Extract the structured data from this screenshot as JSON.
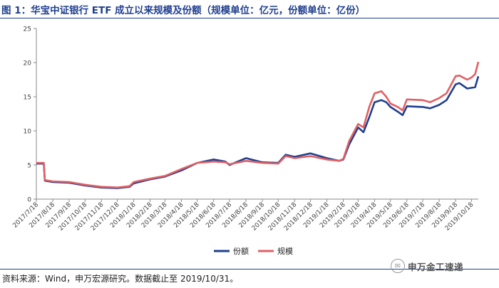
{
  "title": "图 1：华宝中证银行 ETF 成立以来规模及份额（规模单位：亿元，份额单位：亿份）",
  "source": "资料来源：Wind，申万宏源研究。数据截止至 2019/10/31。",
  "watermark": "申万金工速递",
  "colors": {
    "title": "#1f3f8f",
    "shares": "#1f3f8f",
    "scale": "#e06064"
  },
  "chart_data": {
    "type": "line",
    "title": "",
    "xlabel": "",
    "ylabel": "",
    "ylim": [
      0,
      25
    ],
    "yticks": [
      0,
      5,
      10,
      15,
      20,
      25
    ],
    "grid": false,
    "legend_position": "bottom-center",
    "x_tick_labels": [
      "2017/7/18",
      "2017/8/18",
      "2017/9/18",
      "2017/10/18",
      "2017/11/18",
      "2017/12/18",
      "2018/1/18",
      "2018/2/18",
      "2018/3/18",
      "2018/4/18",
      "2018/5/18",
      "2018/6/18",
      "2018/7/18",
      "2018/8/18",
      "2018/9/18",
      "2018/10/18",
      "2018/11/18",
      "2018/12/18",
      "2019/1/18",
      "2019/2/18",
      "2019/3/18",
      "2019/4/18",
      "2019/5/18",
      "2019/6/18",
      "2019/7/18",
      "2019/8/18",
      "2019/9/18",
      "2019/10/18"
    ],
    "series": [
      {
        "name": "份额",
        "color": "#1f3f8f",
        "x": [
          "2017/7/18",
          "2017/8/1",
          "2017/8/3",
          "2017/8/18",
          "2017/9/18",
          "2017/10/18",
          "2017/11/18",
          "2017/12/18",
          "2018/1/10",
          "2018/1/18",
          "2018/2/18",
          "2018/3/18",
          "2018/4/18",
          "2018/5/18",
          "2018/6/18",
          "2018/7/10",
          "2018/7/18",
          "2018/8/18",
          "2018/9/18",
          "2018/10/18",
          "2018/11/1",
          "2018/11/18",
          "2018/12/18",
          "2019/1/18",
          "2019/2/10",
          "2019/2/18",
          "2019/3/1",
          "2019/3/18",
          "2019/3/28",
          "2019/4/8",
          "2019/4/18",
          "2019/5/1",
          "2019/5/10",
          "2019/5/18",
          "2019/6/1",
          "2019/6/10",
          "2019/6/18",
          "2019/7/18",
          "2019/8/1",
          "2019/8/18",
          "2019/9/1",
          "2019/9/18",
          "2019/9/25",
          "2019/10/10",
          "2019/10/18",
          "2019/10/25",
          "2019/10/31"
        ],
        "values": [
          5.2,
          5.2,
          2.7,
          2.5,
          2.4,
          2.0,
          1.7,
          1.6,
          1.8,
          2.3,
          2.9,
          3.3,
          4.2,
          5.3,
          5.8,
          5.5,
          5.0,
          6.0,
          5.4,
          5.3,
          6.5,
          6.2,
          6.7,
          6.0,
          5.6,
          5.8,
          8.0,
          10.5,
          9.8,
          12.0,
          14.2,
          14.5,
          14.2,
          13.5,
          12.8,
          12.3,
          13.6,
          13.5,
          13.3,
          13.8,
          14.5,
          16.8,
          17.0,
          16.2,
          16.3,
          16.4,
          18.0
        ]
      },
      {
        "name": "规模",
        "color": "#e06064",
        "x": [
          "2017/7/18",
          "2017/8/1",
          "2017/8/3",
          "2017/8/18",
          "2017/9/18",
          "2017/10/18",
          "2017/11/18",
          "2017/12/18",
          "2018/1/10",
          "2018/1/18",
          "2018/2/18",
          "2018/3/18",
          "2018/4/18",
          "2018/5/18",
          "2018/6/18",
          "2018/7/10",
          "2018/7/18",
          "2018/8/18",
          "2018/9/18",
          "2018/10/18",
          "2018/11/1",
          "2018/11/18",
          "2018/12/18",
          "2019/1/18",
          "2019/2/10",
          "2019/2/18",
          "2019/3/1",
          "2019/3/18",
          "2019/3/28",
          "2019/4/8",
          "2019/4/18",
          "2019/5/1",
          "2019/5/10",
          "2019/5/18",
          "2019/6/1",
          "2019/6/10",
          "2019/6/18",
          "2019/7/18",
          "2019/8/1",
          "2019/8/18",
          "2019/9/1",
          "2019/9/18",
          "2019/9/25",
          "2019/10/10",
          "2019/10/18",
          "2019/10/25",
          "2019/10/31"
        ],
        "values": [
          5.3,
          5.3,
          2.8,
          2.6,
          2.5,
          2.1,
          1.8,
          1.7,
          1.9,
          2.5,
          3.0,
          3.4,
          4.4,
          5.3,
          5.5,
          5.4,
          5.1,
          5.6,
          5.3,
          5.2,
          6.3,
          6.0,
          6.3,
          5.8,
          5.6,
          5.9,
          8.5,
          11.0,
          10.5,
          13.5,
          15.5,
          15.8,
          15.0,
          14.0,
          13.5,
          13.0,
          14.6,
          14.5,
          14.2,
          14.8,
          15.5,
          18.0,
          18.1,
          17.5,
          17.8,
          18.3,
          20.1
        ]
      }
    ]
  }
}
